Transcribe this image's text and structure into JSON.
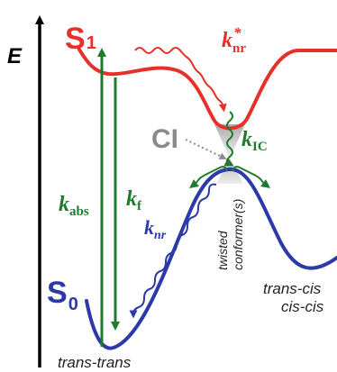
{
  "axis": {
    "energy_label": "E"
  },
  "states": {
    "s1": {
      "main": "S",
      "sub": "1"
    },
    "s0": {
      "main": "S",
      "sub": "0"
    }
  },
  "rates": {
    "knr_star": {
      "k": "k",
      "sub": "nr",
      "sup": "*"
    },
    "kic": {
      "k": "k",
      "sub": "IC"
    },
    "kabs": {
      "k": "k",
      "sub": "abs"
    },
    "kf": {
      "k": "k",
      "sub": "f"
    },
    "knr": {
      "k": "k",
      "sub": "nr"
    }
  },
  "ci_label": "CI",
  "conformers": {
    "twisted_line1": "twisted",
    "twisted_line2": "conformer(s)",
    "right_line1": "trans-cis",
    "right_line2": "cis-cis",
    "bottom": "trans-trans"
  },
  "colors": {
    "s1_curve": "#e8302a",
    "s0_curve": "#2b3aa8",
    "green": "#1f7a2e",
    "ci_gray": "#8a8a8a",
    "axis": "#000000"
  }
}
